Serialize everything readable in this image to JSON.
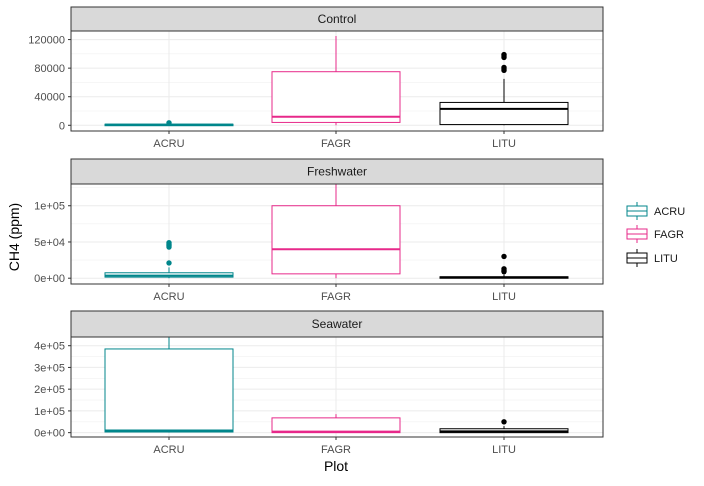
{
  "chart_data": {
    "type": "boxplot",
    "xlabel": "Plot",
    "ylabel": "CH4 (ppm)",
    "legend": {
      "position": "right",
      "entries": [
        {
          "label": "ACRU",
          "color": "#00868b"
        },
        {
          "label": "FAGR",
          "color": "#e7298a"
        },
        {
          "label": "LITU",
          "color": "#000000"
        }
      ]
    },
    "categories": [
      "ACRU",
      "FAGR",
      "LITU"
    ],
    "facets": [
      {
        "title": "Control",
        "ylim": [
          -8000,
          132000
        ],
        "yticks": [
          0,
          40000,
          80000,
          120000
        ],
        "ytick_labels": [
          "0",
          "40000",
          "80000",
          "120000"
        ],
        "boxes": [
          {
            "group": "ACRU",
            "min": 0,
            "q1": 500,
            "median": 1000,
            "q3": 1500,
            "max": 2000,
            "outliers": [
              3500
            ]
          },
          {
            "group": "FAGR",
            "min": 0,
            "q1": 4000,
            "median": 12000,
            "q3": 75000,
            "max": 125000,
            "outliers": []
          },
          {
            "group": "LITU",
            "min": 0,
            "q1": 1000,
            "median": 23000,
            "q3": 32000,
            "max": 65000,
            "outliers": [
              77000,
              79000,
              81000,
              95000,
              97000,
              99000
            ]
          }
        ]
      },
      {
        "title": "Freshwater",
        "ylim": [
          -8000,
          130000
        ],
        "yticks": [
          0,
          50000,
          100000
        ],
        "ytick_labels": [
          "0e+00",
          "5e+04",
          "1e+05"
        ],
        "boxes": [
          {
            "group": "ACRU",
            "min": 0,
            "q1": 1500,
            "median": 3500,
            "q3": 7500,
            "max": 15000,
            "outliers": [
              21000,
              43000,
              45000,
              47000,
              49000
            ]
          },
          {
            "group": "FAGR",
            "min": 0,
            "q1": 6000,
            "median": 40000,
            "q3": 100000,
            "max": 130000,
            "outliers": []
          },
          {
            "group": "LITU",
            "min": 0,
            "q1": 500,
            "median": 1200,
            "q3": 2000,
            "max": 5000,
            "outliers": [
              9000,
              11000,
              13000,
              30000
            ]
          }
        ]
      },
      {
        "title": "Seawater",
        "ylim": [
          -20000,
          440000
        ],
        "yticks": [
          0,
          100000,
          200000,
          300000,
          400000
        ],
        "ytick_labels": [
          "0e+00",
          "1e+05",
          "2e+05",
          "3e+05",
          "4e+05"
        ],
        "boxes": [
          {
            "group": "ACRU",
            "min": 0,
            "q1": 3000,
            "median": 10000,
            "q3": 385000,
            "max": 440000,
            "outliers": []
          },
          {
            "group": "FAGR",
            "min": 0,
            "q1": 0,
            "median": 5000,
            "q3": 68000,
            "max": 85000,
            "outliers": []
          },
          {
            "group": "LITU",
            "min": 0,
            "q1": 0,
            "median": 6000,
            "q3": 18000,
            "max": 30000,
            "outliers": [
              50000
            ]
          }
        ]
      }
    ]
  }
}
